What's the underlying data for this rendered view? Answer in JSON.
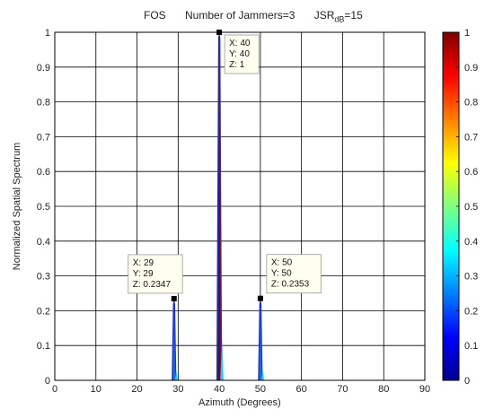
{
  "title": {
    "method": "FOS",
    "jammers": "Number of Jammers=3",
    "jsr_prefix": "JSR",
    "jsr_sub": "dB",
    "jsr_suffix": "=15"
  },
  "colors": {
    "colormap": [
      "#00008f",
      "#0000ff",
      "#0080ff",
      "#00ffff",
      "#80ff80",
      "#ffff00",
      "#ff8000",
      "#ff0000",
      "#800000"
    ],
    "grid": "#000000"
  },
  "chart_data": {
    "type": "area",
    "xlabel": "Azimuth (Degrees)",
    "ylabel": "Normalized Spatial Spectrum",
    "xlim": [
      0,
      90
    ],
    "ylim": [
      0,
      1
    ],
    "xticks": [
      "0",
      "10",
      "20",
      "30",
      "40",
      "50",
      "60",
      "70",
      "80",
      "90"
    ],
    "yticks": [
      "0",
      "0.1",
      "0.2",
      "0.3",
      "0.4",
      "0.5",
      "0.6",
      "0.7",
      "0.8",
      "0.9",
      "1"
    ],
    "grid": true,
    "peaks": [
      {
        "x": 29,
        "y": 0.2347
      },
      {
        "x": 40,
        "y": 1
      },
      {
        "x": 50,
        "y": 0.2353
      }
    ],
    "datatips": [
      {
        "lines": [
          "X: 29",
          "Y: 29",
          "Z: 0.2347"
        ]
      },
      {
        "lines": [
          "X: 40",
          "Y: 40",
          "Z: 1"
        ]
      },
      {
        "lines": [
          "X: 50",
          "Y: 50",
          "Z: 0.2353"
        ]
      }
    ],
    "colorbar": {
      "lim": [
        0,
        1
      ],
      "ticks": [
        "0",
        "0.1",
        "0.2",
        "0.3",
        "0.4",
        "0.5",
        "0.6",
        "0.7",
        "0.8",
        "0.9",
        "1"
      ]
    }
  }
}
